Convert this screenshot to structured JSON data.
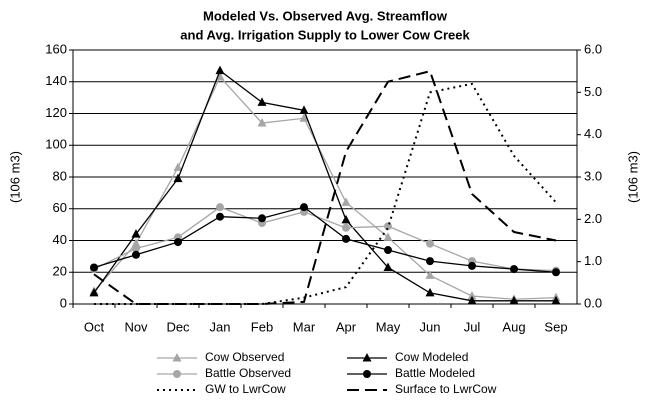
{
  "chart_data": {
    "type": "line",
    "title": [
      "Modeled Vs. Observed Avg. Streamflow",
      "and Avg. Irrigation Supply to Lower Cow Creek"
    ],
    "y_label": "(106 m3)",
    "y2_label": "(106 m3)",
    "categories": [
      "Oct",
      "Nov",
      "Dec",
      "Jan",
      "Feb",
      "Mar",
      "Apr",
      "May",
      "Jun",
      "Jul",
      "Aug",
      "Sep"
    ],
    "ylim": [
      0,
      160
    ],
    "yticks": [
      0,
      20,
      40,
      60,
      80,
      100,
      120,
      140,
      160
    ],
    "y2lim": [
      0,
      6
    ],
    "y2ticks": [
      {
        "value": 0,
        "label": "0.0"
      },
      {
        "value": 1,
        "label": "1.0"
      },
      {
        "value": 2,
        "label": "2.0"
      },
      {
        "value": 3,
        "label": "3.0"
      },
      {
        "value": 4,
        "label": "4.0"
      },
      {
        "value": 5,
        "label": "5.0"
      },
      {
        "value": 6,
        "label": "6.0"
      }
    ],
    "grid": true,
    "series": [
      {
        "name": "Cow Observed",
        "color": "#a6a6a6",
        "marker": "triangle",
        "values": [
          8,
          38,
          86,
          143,
          114,
          117,
          64,
          42,
          18,
          5,
          3,
          4
        ]
      },
      {
        "name": "Cow Modeled",
        "color": "#000000",
        "marker": "triangle",
        "values": [
          7,
          44,
          79,
          147,
          127,
          122,
          53,
          23,
          7,
          2,
          2,
          2
        ]
      },
      {
        "name": "Battle Observed",
        "color": "#a6a6a6",
        "marker": "circle",
        "values": [
          22,
          35,
          42,
          61,
          51,
          58,
          48,
          49,
          38,
          27,
          22,
          21
        ]
      },
      {
        "name": "Battle Modeled",
        "color": "#000000",
        "marker": "circle",
        "values": [
          23,
          31,
          39,
          55,
          54,
          61,
          41,
          34,
          27,
          24,
          22,
          20
        ]
      },
      {
        "name": "GW to LwrCow",
        "color": "#000000",
        "dash": "dotted",
        "axis": "y2",
        "values": [
          0,
          0,
          0,
          0,
          0,
          0.15,
          0.4,
          1.8,
          5.0,
          5.2,
          3.5,
          2.4
        ]
      },
      {
        "name": "Surface to LwrCow",
        "color": "#000000",
        "dash": "dashed",
        "axis": "y2",
        "values": [
          0.7,
          0,
          0,
          0,
          0,
          0.05,
          3.6,
          5.25,
          5.5,
          2.6,
          1.7,
          1.5
        ]
      }
    ]
  }
}
